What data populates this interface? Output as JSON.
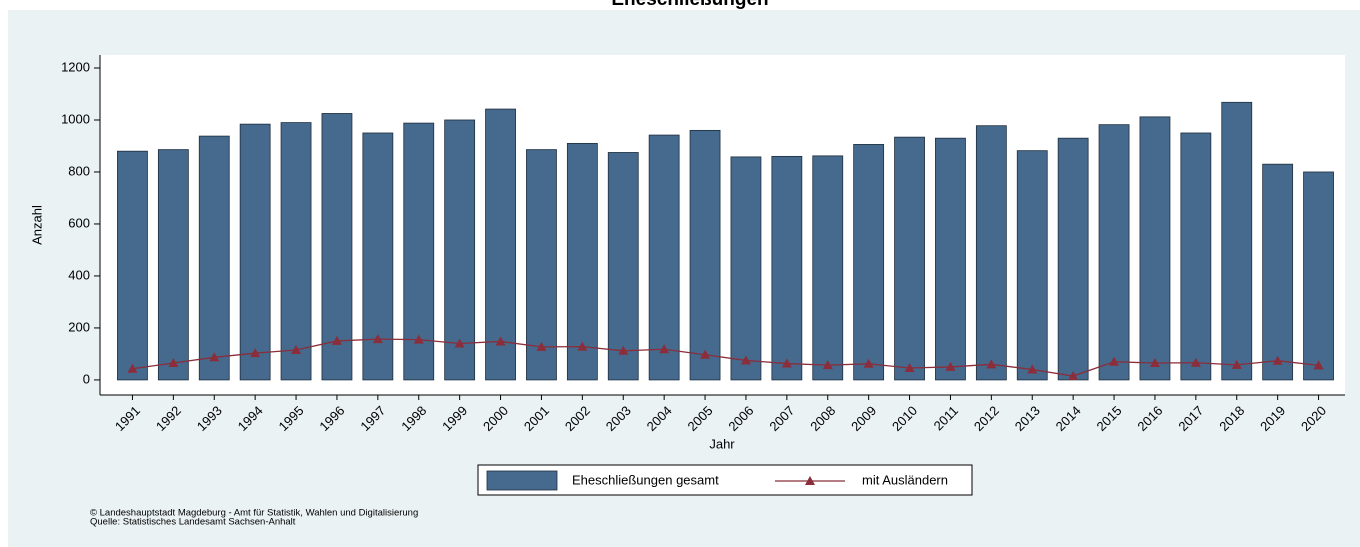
{
  "chart_data": {
    "type": "bar",
    "title": "Eheschließungen",
    "x_label": "Jahr",
    "y_label": "Anzahl",
    "categories": [
      "1991",
      "1992",
      "1993",
      "1994",
      "1995",
      "1996",
      "1997",
      "1998",
      "1999",
      "2000",
      "2001",
      "2002",
      "2003",
      "2004",
      "2005",
      "2006",
      "2007",
      "2008",
      "2009",
      "2010",
      "2011",
      "2012",
      "2013",
      "2014",
      "2015",
      "2016",
      "2017",
      "2018",
      "2019",
      "2020"
    ],
    "series": [
      {
        "name": "Eheschließungen gesamt",
        "type": "bar",
        "color": "#456a8d",
        "values": [
          880,
          886,
          938,
          984,
          990,
          1025,
          950,
          988,
          1000,
          1042,
          886,
          910,
          875,
          942,
          960,
          858,
          860,
          862,
          906,
          934,
          930,
          978,
          882,
          930,
          982,
          1012,
          950,
          1068,
          830,
          800
        ]
      },
      {
        "name": "mit Ausländern",
        "type": "line",
        "color": "#8b2d3a",
        "values": [
          43,
          65,
          87,
          103,
          115,
          150,
          157,
          155,
          140,
          148,
          127,
          128,
          112,
          118,
          97,
          75,
          63,
          57,
          62,
          46,
          50,
          60,
          40,
          15,
          70,
          65,
          66,
          58,
          74,
          56
        ]
      }
    ],
    "ylim": [
      -58,
      1250
    ],
    "yticks": [
      0,
      200,
      400,
      600,
      800,
      1000,
      1200
    ],
    "footnote": [
      "© Landeshauptstadt Magdeburg - Amt für Statistik, Wahlen und Digitalisierung",
      "Quelle: Statistisches Landesamt Sachsen-Anhalt"
    ]
  }
}
